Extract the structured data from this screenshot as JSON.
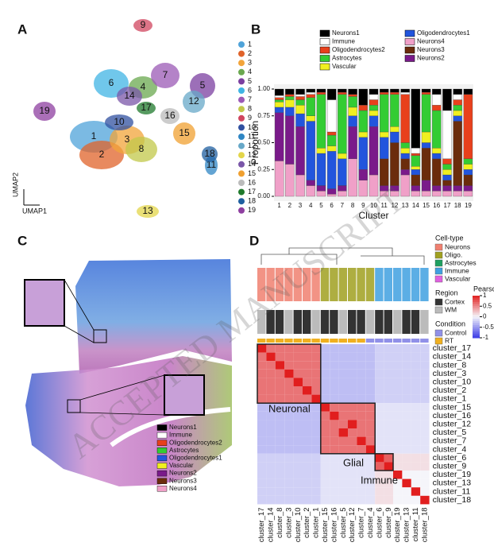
{
  "figure": {
    "panel_labels": [
      "A",
      "B",
      "C",
      "D"
    ],
    "watermark": "ACCEPTED MANUSCRIPT",
    "umap": {
      "x_label": "UMAP1",
      "y_label": "UMAP2",
      "legend": [
        {
          "label": "1",
          "color": "#4fa3d9"
        },
        {
          "label": "2",
          "color": "#e0632a"
        },
        {
          "label": "3",
          "color": "#f2a43a"
        },
        {
          "label": "4",
          "color": "#6aa84f"
        },
        {
          "label": "5",
          "color": "#7b3fa0"
        },
        {
          "label": "6",
          "color": "#40b4e4"
        },
        {
          "label": "7",
          "color": "#9b59b6"
        },
        {
          "label": "8",
          "color": "#c2c84a"
        },
        {
          "label": "9",
          "color": "#d0455f"
        },
        {
          "label": "10",
          "color": "#3050a0"
        },
        {
          "label": "11",
          "color": "#2f86c4"
        },
        {
          "label": "12",
          "color": "#67a8c8"
        },
        {
          "label": "13",
          "color": "#e3d54a"
        },
        {
          "label": "14",
          "color": "#7a56a8"
        },
        {
          "label": "15",
          "color": "#f0a030"
        },
        {
          "label": "16",
          "color": "#bbbbbb"
        },
        {
          "label": "17",
          "color": "#1f7a2c"
        },
        {
          "label": "18",
          "color": "#1f5fa0"
        },
        {
          "label": "19",
          "color": "#8e3fa0"
        }
      ]
    },
    "spatial": {
      "legend": [
        {
          "label": "Neurons1",
          "color": "#000000"
        },
        {
          "label": "Immune",
          "color": "#ffffff"
        },
        {
          "label": "Oligodendrocytes2",
          "color": "#e8401c"
        },
        {
          "label": "Astrocytes",
          "color": "#33cc33"
        },
        {
          "label": "Oligodendrocytes1",
          "color": "#2255dd"
        },
        {
          "label": "Vascular",
          "color": "#f0f020"
        },
        {
          "label": "Neurons2",
          "color": "#7a1a8a"
        },
        {
          "label": "Neurons3",
          "color": "#6b2c0c"
        },
        {
          "label": "Neurons4",
          "color": "#f0a0c8"
        }
      ]
    },
    "heatmap_legends": {
      "cell_type": {
        "title": "Cell-type",
        "items": [
          {
            "label": "Neurons",
            "color": "#f08070"
          },
          {
            "label": "Oligo.",
            "color": "#a0a020"
          },
          {
            "label": "Astrocytes",
            "color": "#20a060"
          },
          {
            "label": "Immune",
            "color": "#40a0e0"
          },
          {
            "label": "Vascular",
            "color": "#e060e0"
          }
        ]
      },
      "region": {
        "title": "Region",
        "items": [
          {
            "label": "Cortex",
            "color": "#333333"
          },
          {
            "label": "WM",
            "color": "#bbbbbb"
          }
        ]
      },
      "condition": {
        "title": "Condition",
        "items": [
          {
            "label": "Control",
            "color": "#9090e8"
          },
          {
            "label": "RT",
            "color": "#f0b020"
          }
        ]
      }
    }
  },
  "chart_data": [
    {
      "type": "bar",
      "stacked": true,
      "x_label": "Cluster",
      "y_label": "Proportion",
      "categories": [
        "1",
        "2",
        "3",
        "4",
        "5",
        "6",
        "7",
        "8",
        "9",
        "10",
        "11",
        "12",
        "13",
        "14",
        "15",
        "16",
        "17",
        "18",
        "19"
      ],
      "ylim": [
        0,
        1
      ],
      "yticks": [
        {
          "value": 0,
          "label": "0.00"
        },
        {
          "value": 0.25,
          "label": "0.25"
        },
        {
          "value": 0.5,
          "label": "0.50"
        },
        {
          "value": 0.75,
          "label": "0.75"
        },
        {
          "value": 1,
          "label": "1.00"
        }
      ],
      "series": [
        {
          "name": "Neurons4",
          "color": "#f0a0c8",
          "values": [
            0.33,
            0.3,
            0.2,
            0.1,
            0.05,
            0.02,
            0.05,
            0.35,
            0.15,
            0.2,
            0.05,
            0.05,
            0.2,
            0.05,
            0.05,
            0.05,
            0.05,
            0.05,
            0.05
          ]
        },
        {
          "name": "Neurons2",
          "color": "#7a1a8a",
          "values": [
            0.45,
            0.45,
            0.45,
            0.05,
            0.05,
            0.05,
            0.05,
            0.3,
            0.1,
            0.45,
            0.05,
            0.05,
            0.05,
            0.05,
            0.1,
            0.05,
            0.05,
            0.05,
            0.05
          ]
        },
        {
          "name": "Neurons3",
          "color": "#6b2c0c",
          "values": [
            0,
            0,
            0,
            0,
            0,
            0,
            0,
            0,
            0,
            0,
            0.25,
            0.4,
            0.1,
            0.1,
            0.3,
            0.25,
            0.05,
            0.6,
            0.1
          ]
        },
        {
          "name": "Oligodendrocytes1",
          "color": "#2255dd",
          "values": [
            0.05,
            0.08,
            0.12,
            0.55,
            0.3,
            0.35,
            0.25,
            0.1,
            0.3,
            0.1,
            0.2,
            0.1,
            0.05,
            0.05,
            0.05,
            0.05,
            0.05,
            0.05,
            0.05
          ]
        },
        {
          "name": "Vascular",
          "color": "#f0f020",
          "values": [
            0.05,
            0.07,
            0.08,
            0.05,
            0.05,
            0.05,
            0.05,
            0.08,
            0.05,
            0.05,
            0.05,
            0.05,
            0.05,
            0.03,
            0.1,
            0.05,
            0.05,
            0.05,
            0.05
          ]
        },
        {
          "name": "Astrocytes",
          "color": "#33cc33",
          "values": [
            0.02,
            0.03,
            0.05,
            0.17,
            0.5,
            0.1,
            0.55,
            0.1,
            0.2,
            0.05,
            0.35,
            0.3,
            0.05,
            0.1,
            0.35,
            0.35,
            0.05,
            0.05,
            0.05
          ]
        },
        {
          "name": "Oligodendrocytes2",
          "color": "#e8401c",
          "values": [
            0.02,
            0.02,
            0.03,
            0.03,
            0.02,
            0.03,
            0.02,
            0.02,
            0.05,
            0.05,
            0.02,
            0.02,
            0.45,
            0.02,
            0.02,
            0.05,
            0.05,
            0.05,
            0.6
          ]
        },
        {
          "name": "Immune",
          "color": "#ffffff",
          "values": [
            0.02,
            0,
            0.02,
            0.02,
            0,
            0.3,
            0,
            0,
            0,
            0.05,
            0,
            0,
            0.02,
            0.05,
            0,
            0.1,
            0.45,
            0.05,
            0
          ]
        },
        {
          "name": "Neurons1",
          "color": "#000000",
          "values": [
            0.06,
            0.05,
            0.05,
            0.03,
            0.03,
            0.1,
            0.03,
            0.05,
            0.15,
            0.05,
            0.03,
            0.03,
            0.03,
            0.55,
            0.03,
            0.05,
            0.2,
            0.05,
            0.05
          ]
        }
      ]
    },
    {
      "type": "heatmap",
      "colorbar_title": "Pearson",
      "clim": [
        -1,
        1
      ],
      "colorbar_ticks": [
        1,
        0.5,
        0,
        -0.5,
        -1
      ],
      "annotations": [
        "Neuronal",
        "Glial",
        "Immune"
      ],
      "rows": [
        "cluster_17",
        "cluster_14",
        "cluster_8",
        "cluster_3",
        "cluster_10",
        "cluster_2",
        "cluster_1",
        "cluster_15",
        "cluster_16",
        "cluster_12",
        "cluster_5",
        "cluster_7",
        "cluster_4",
        "cluster_6",
        "cluster_9",
        "cluster_19",
        "cluster_13",
        "cluster_11",
        "cluster_18"
      ],
      "columns": [
        "cluster_17",
        "cluster_14",
        "cluster_8",
        "cluster_3",
        "cluster_10",
        "cluster_2",
        "cluster_1",
        "cluster_15",
        "cluster_16",
        "cluster_5",
        "cluster_12",
        "cluster_7",
        "cluster_4",
        "cluster_6",
        "cluster_9",
        "cluster_19",
        "cluster_13",
        "cluster_11",
        "cluster_18"
      ],
      "values": [
        [
          1,
          0.6,
          0.6,
          0.6,
          0.6,
          0.6,
          0.6,
          -0.3,
          -0.3,
          -0.3,
          -0.3,
          -0.3,
          -0.3,
          -0.2,
          -0.2,
          -0.2,
          -0.2,
          -0.2,
          -0.2
        ],
        [
          0.6,
          1,
          0.6,
          0.6,
          0.6,
          0.6,
          0.6,
          -0.3,
          -0.3,
          -0.3,
          -0.3,
          -0.3,
          -0.3,
          -0.2,
          -0.2,
          -0.2,
          -0.2,
          -0.2,
          -0.2
        ],
        [
          0.6,
          0.6,
          1,
          0.6,
          0.6,
          0.6,
          0.6,
          -0.3,
          -0.3,
          -0.3,
          -0.3,
          -0.3,
          -0.3,
          -0.2,
          -0.2,
          -0.2,
          -0.2,
          -0.2,
          -0.2
        ],
        [
          0.6,
          0.6,
          0.6,
          1,
          0.6,
          0.6,
          0.6,
          -0.3,
          -0.3,
          -0.3,
          -0.3,
          -0.3,
          -0.3,
          -0.2,
          -0.2,
          -0.2,
          -0.2,
          -0.2,
          -0.2
        ],
        [
          0.6,
          0.6,
          0.6,
          0.6,
          1,
          0.6,
          0.6,
          -0.3,
          -0.3,
          -0.3,
          -0.3,
          -0.3,
          -0.3,
          -0.2,
          -0.2,
          -0.2,
          -0.2,
          -0.2,
          -0.2
        ],
        [
          0.6,
          0.6,
          0.6,
          0.6,
          0.6,
          1,
          0.6,
          -0.3,
          -0.3,
          -0.3,
          -0.3,
          -0.3,
          -0.3,
          -0.2,
          -0.2,
          -0.2,
          -0.2,
          -0.2,
          -0.2
        ],
        [
          0.6,
          0.6,
          0.6,
          0.6,
          0.6,
          0.6,
          1,
          -0.3,
          -0.3,
          -0.3,
          -0.3,
          -0.3,
          -0.3,
          -0.2,
          -0.2,
          -0.2,
          -0.2,
          -0.2,
          -0.2
        ],
        [
          -0.3,
          -0.3,
          -0.3,
          -0.3,
          -0.3,
          -0.3,
          -0.3,
          1,
          0.6,
          0.6,
          0.6,
          0.6,
          0.6,
          -0.1,
          -0.1,
          -0.1,
          -0.1,
          -0.1,
          -0.1
        ],
        [
          -0.3,
          -0.3,
          -0.3,
          -0.3,
          -0.3,
          -0.3,
          -0.3,
          0.6,
          1,
          0.6,
          0.6,
          0.6,
          0.6,
          -0.1,
          -0.1,
          -0.1,
          -0.1,
          -0.1,
          -0.1
        ],
        [
          -0.3,
          -0.3,
          -0.3,
          -0.3,
          -0.3,
          -0.3,
          -0.3,
          0.6,
          0.6,
          0.6,
          1,
          0.6,
          0.6,
          -0.1,
          -0.1,
          -0.1,
          -0.1,
          -0.1,
          -0.1
        ],
        [
          -0.3,
          -0.3,
          -0.3,
          -0.3,
          -0.3,
          -0.3,
          -0.3,
          0.6,
          0.6,
          1,
          0.6,
          0.6,
          0.6,
          -0.1,
          -0.1,
          -0.1,
          -0.1,
          -0.1,
          -0.1
        ],
        [
          -0.3,
          -0.3,
          -0.3,
          -0.3,
          -0.3,
          -0.3,
          -0.3,
          0.6,
          0.6,
          0.6,
          0.6,
          1,
          0.6,
          -0.1,
          -0.1,
          -0.1,
          -0.1,
          -0.1,
          -0.1
        ],
        [
          -0.3,
          -0.3,
          -0.3,
          -0.3,
          -0.3,
          -0.3,
          -0.3,
          0.6,
          0.6,
          0.6,
          0.6,
          0.6,
          1,
          -0.1,
          -0.1,
          -0.1,
          -0.1,
          -0.1,
          -0.1
        ],
        [
          -0.2,
          -0.2,
          -0.2,
          -0.2,
          -0.2,
          -0.2,
          -0.2,
          -0.1,
          -0.1,
          -0.1,
          -0.1,
          -0.1,
          -0.1,
          1,
          0.7,
          0.1,
          0.1,
          0.1,
          0.1
        ],
        [
          -0.2,
          -0.2,
          -0.2,
          -0.2,
          -0.2,
          -0.2,
          -0.2,
          -0.1,
          -0.1,
          -0.1,
          -0.1,
          -0.1,
          -0.1,
          0.7,
          1,
          0.1,
          0.1,
          0.1,
          0.1
        ],
        [
          -0.2,
          -0.2,
          -0.2,
          -0.2,
          -0.2,
          -0.2,
          -0.2,
          -0.1,
          -0.1,
          -0.1,
          -0.1,
          -0.1,
          -0.1,
          0.1,
          0.1,
          1,
          0,
          0,
          0
        ],
        [
          -0.2,
          -0.2,
          -0.2,
          -0.2,
          -0.2,
          -0.2,
          -0.2,
          -0.1,
          -0.1,
          -0.1,
          -0.1,
          -0.1,
          -0.1,
          0.1,
          0.1,
          0,
          1,
          0,
          0
        ],
        [
          -0.2,
          -0.2,
          -0.2,
          -0.2,
          -0.2,
          -0.2,
          -0.2,
          -0.1,
          -0.1,
          -0.1,
          -0.1,
          -0.1,
          -0.1,
          0.1,
          0.1,
          0,
          0,
          1,
          0
        ],
        [
          -0.2,
          -0.2,
          -0.2,
          -0.2,
          -0.2,
          -0.2,
          -0.2,
          -0.1,
          -0.1,
          -0.1,
          -0.1,
          -0.1,
          -0.1,
          0.1,
          0.1,
          0,
          0,
          0,
          1
        ]
      ]
    }
  ]
}
